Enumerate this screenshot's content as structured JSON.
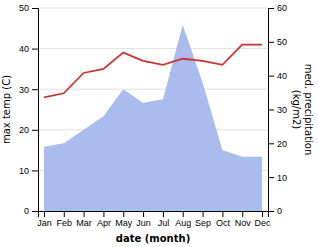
{
  "chart_data": {
    "type": "line",
    "categories": [
      "Jan",
      "Feb",
      "Mar",
      "Apr",
      "May",
      "Jun",
      "Jul",
      "Aug",
      "Sep",
      "Oct",
      "Nov",
      "Dec"
    ],
    "series": [
      {
        "type": "area",
        "axis": "y2",
        "color": "#aabbee",
        "values": [
          19,
          20,
          24,
          28,
          36,
          32,
          33,
          55,
          38,
          18,
          16,
          16
        ]
      },
      {
        "type": "line",
        "color": "#cc3333",
        "values": [
          28,
          29,
          34,
          35,
          39,
          37,
          36,
          37.5,
          37,
          36,
          41,
          41
        ]
      }
    ],
    "xlabel": "date (month)",
    "ylabel": "max temp (C)",
    "y2label": "med. precipitation\n(kg/m2)",
    "ylim": [
      0,
      50
    ],
    "yticks": [
      0,
      10,
      20,
      30,
      40,
      50
    ],
    "y2lim": [
      0,
      60
    ],
    "y2ticks": [
      0,
      10,
      20,
      30,
      40,
      50,
      60
    ],
    "grid": true
  }
}
